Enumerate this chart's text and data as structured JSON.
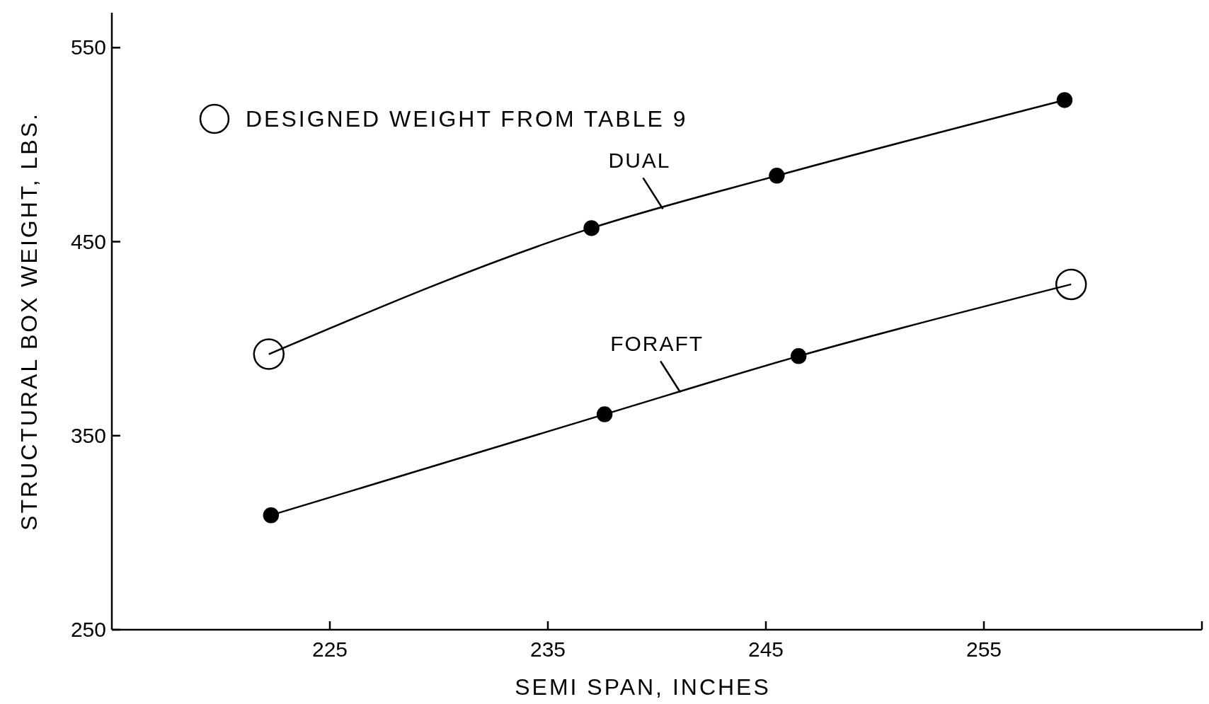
{
  "chart_data": {
    "type": "line",
    "xlabel": "SEMI SPAN, INCHES",
    "ylabel": "STRUCTURAL BOX WEIGHT, LBS.",
    "xlim": [
      215,
      265
    ],
    "xticks": [
      225,
      235,
      245,
      255
    ],
    "ylim": [
      250,
      568
    ],
    "yticks": [
      250,
      350,
      450,
      550
    ],
    "grid": false,
    "legend": "top left",
    "line_style": "solid",
    "series": [
      {
        "name": "DUAL",
        "color": "#000000",
        "marker": "none",
        "x": [
          222.2,
          237.0,
          245.5,
          258.7
        ],
        "values": [
          392,
          457,
          484,
          523
        ]
      },
      {
        "name": "FORAFT",
        "color": "#000000",
        "marker": "none",
        "x": [
          222.3,
          237.6,
          246.5,
          259.0
        ],
        "values": [
          309,
          361,
          391,
          428
        ]
      },
      {
        "type": "scatter",
        "color": "#000000",
        "marker": "circle",
        "x": [
          237.0,
          245.5,
          258.7,
          222.3,
          237.6,
          246.5
        ],
        "values": [
          457,
          484,
          523,
          309,
          361,
          391
        ]
      },
      {
        "name": "DESIGNED WEIGHT FROM TABLE 9",
        "type": "scatter",
        "color": "#000000",
        "marker": "circle",
        "x": [
          222.2,
          259.0
        ],
        "values": [
          392,
          428
        ]
      }
    ]
  }
}
